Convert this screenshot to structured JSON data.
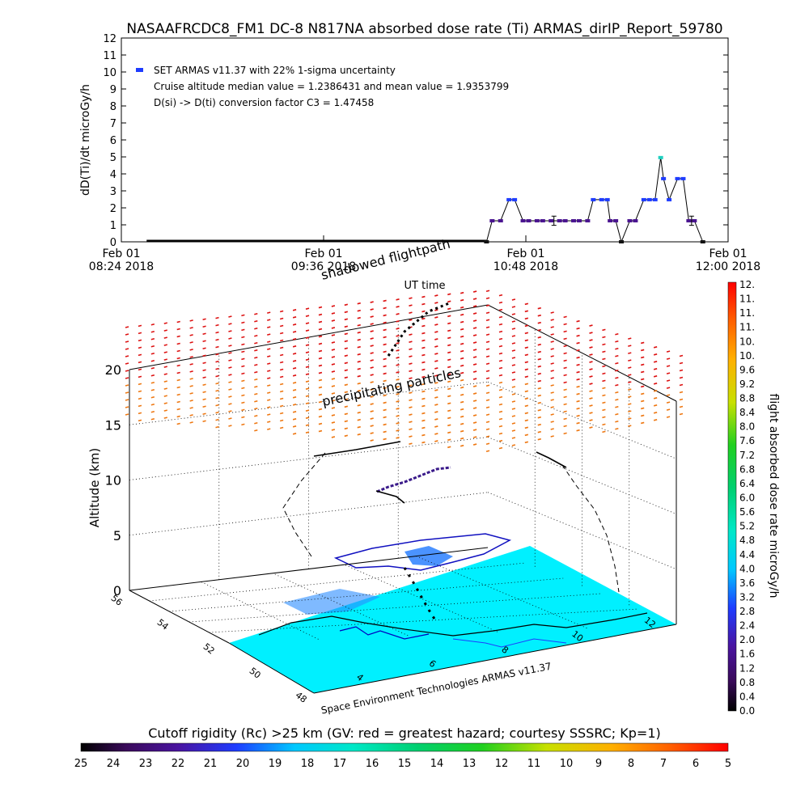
{
  "title": "NASAAFRCDC8_FM1 DC-8   N817NA absorbed dose rate (Ti) ARMAS_dirIP_Report_59780",
  "chart_data": [
    {
      "type": "line",
      "ylabel": "dD(Ti)/dt microGy/h",
      "xlabel": "UT time",
      "ylim": [
        0,
        12
      ],
      "xlim": [
        "2018-02-01 08:24",
        "2018-02-01 12:00"
      ],
      "x_ticks": [
        {
          "day": "Feb 01",
          "date": "08:24 2018"
        },
        {
          "day": "Feb 01",
          "date": "09:36 2018"
        },
        {
          "day": "Feb 01",
          "date": "10:48 2018"
        },
        {
          "day": "Feb 01",
          "date": "12:00 2018"
        }
      ],
      "y_ticks": [
        "0",
        "1",
        "2",
        "3",
        "4",
        "5",
        "6",
        "7",
        "8",
        "9",
        "10",
        "11",
        "12"
      ],
      "legend": [
        "SET ARMAS v11.37 with 22% 1-sigma uncertainty",
        "Cruise altitude median value = 1.2386431 and mean value = 1.9353799",
        "D(si) -> D(ti) conversion factor C3 = 1.47458"
      ],
      "legend_marker_color": "#1e3cff",
      "baseline": {
        "x_start": "2018-02-01 08:33",
        "x_end": "2018-02-01 10:34",
        "y": 0
      },
      "series": [
        {
          "x": [
            "2018-02-01 10:34",
            "2018-02-01 10:36",
            "2018-02-01 10:39",
            "2018-02-01 10:42",
            "2018-02-01 10:44",
            "2018-02-01 10:47",
            "2018-02-01 10:49",
            "2018-02-01 10:52",
            "2018-02-01 10:54",
            "2018-02-01 10:57",
            "2018-02-01 11:00",
            "2018-02-01 11:02",
            "2018-02-01 11:05",
            "2018-02-01 11:07",
            "2018-02-01 11:10",
            "2018-02-01 11:12",
            "2018-02-01 11:15",
            "2018-02-01 11:17",
            "2018-02-01 11:18",
            "2018-02-01 11:20",
            "2018-02-01 11:22",
            "2018-02-01 11:25",
            "2018-02-01 11:27",
            "2018-02-01 11:30",
            "2018-02-01 11:32",
            "2018-02-01 11:34",
            "2018-02-01 11:36",
            "2018-02-01 11:37",
            "2018-02-01 11:39",
            "2018-02-01 11:42",
            "2018-02-01 11:44",
            "2018-02-01 11:46",
            "2018-02-01 11:48",
            "2018-02-01 11:51"
          ],
          "values": [
            0,
            1.24,
            1.24,
            2.48,
            2.48,
            1.24,
            1.24,
            1.24,
            1.24,
            1.24,
            1.24,
            1.24,
            1.24,
            1.24,
            1.24,
            2.48,
            2.48,
            2.48,
            1.24,
            1.24,
            0,
            1.24,
            1.24,
            2.48,
            2.48,
            2.48,
            4.96,
            3.72,
            2.48,
            3.72,
            3.72,
            1.24,
            1.24,
            0
          ]
        }
      ],
      "error_bars": [
        {
          "x": "2018-02-01 10:58",
          "y": 1.24,
          "err": 0.27
        },
        {
          "x": "2018-02-01 11:47",
          "y": 1.24,
          "err": 0.27
        }
      ]
    },
    {
      "type": "scatter",
      "title": "shadowed flightpath",
      "zlabel": "Altitude (km)",
      "z_ticks": [
        "0",
        "5",
        "10",
        "15",
        "20"
      ],
      "zlim": [
        0,
        22
      ],
      "lat_ticks": [
        "48",
        "50",
        "52",
        "54",
        "56"
      ],
      "lon_ticks": [
        "4",
        "6",
        "8",
        "10",
        "12"
      ],
      "annotation": "precipitating particles",
      "credit": "Space Environment Technologies ARMAS v11.37",
      "map_fill_color": "#00f0ff",
      "precipitating_color_top": "#dd1111",
      "precipitating_color_bottom": "#ee7711"
    },
    {
      "type": "heatmap",
      "colorbar_label": "flight absorbed dose rate microGy/h",
      "colorbar_ticks": [
        "0.0",
        "0.4",
        "0.8",
        "1.2",
        "1.6",
        "2.0",
        "2.4",
        "2.8",
        "3.2",
        "3.6",
        "4.0",
        "4.4",
        "4.8",
        "5.2",
        "5.6",
        "6.0",
        "6.4",
        "6.8",
        "7.2",
        "7.6",
        "8.0",
        "8.4",
        "8.8",
        "9.2",
        "9.6",
        "10.",
        "10.",
        "11.",
        "11.",
        "11.",
        "12."
      ],
      "range": [
        0,
        12
      ]
    },
    {
      "type": "heatmap",
      "colorbar_label": "Cutoff rigidity (Rc) >25 km (GV: red = greatest hazard; courtesy SSSRC; Kp=1)",
      "colorbar_ticks": [
        "25",
        "24",
        "23",
        "22",
        "21",
        "20",
        "19",
        "18",
        "17",
        "16",
        "15",
        "14",
        "13",
        "12",
        "11",
        "10",
        "9",
        "8",
        "7",
        "6",
        "5"
      ],
      "range": [
        25,
        5
      ]
    }
  ]
}
